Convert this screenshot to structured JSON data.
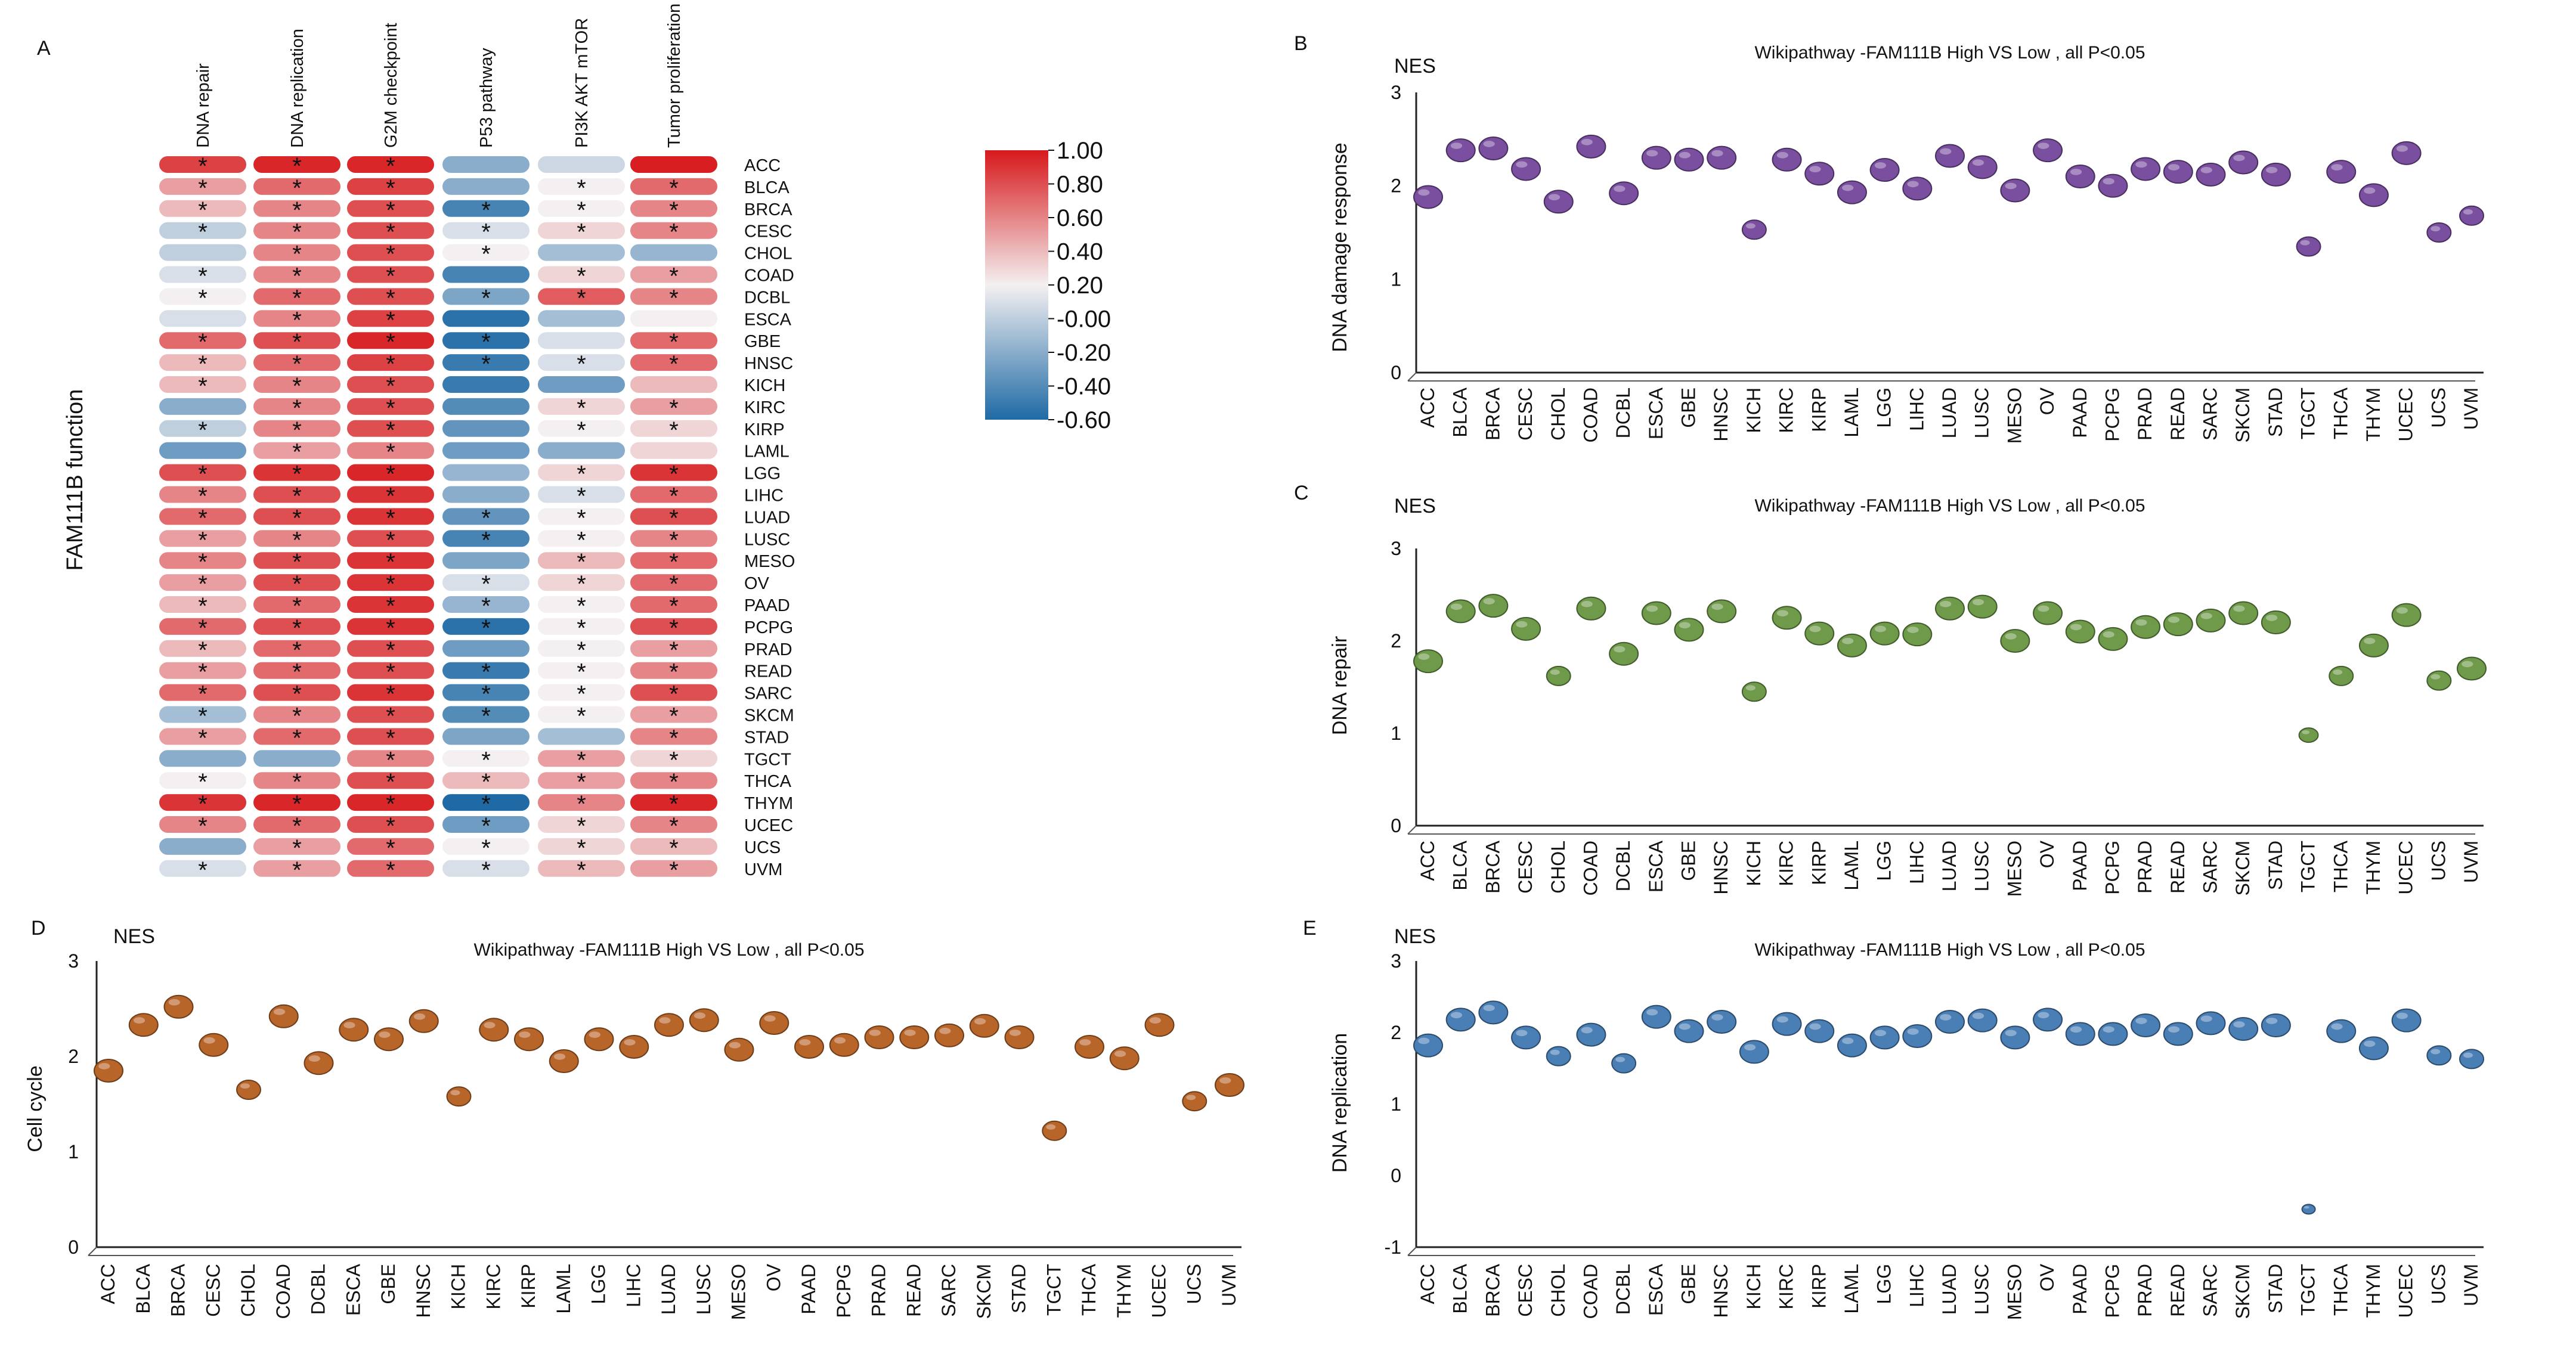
{
  "chart_data": [
    {
      "panel": "A",
      "type": "heatmap",
      "ylabel": "FAM111B function",
      "columns": [
        "DNA repair",
        "DNA replication",
        "G2M checkpoint",
        "P53 pathway",
        "PI3K AKT mTOR",
        "Tumor proliferation"
      ],
      "rows": [
        "ACC",
        "BLCA",
        "BRCA",
        "CESC",
        "CHOL",
        "COAD",
        "DCBL",
        "ESCA",
        "GBE",
        "HNSC",
        "KICH",
        "KIRC",
        "KIRP",
        "LAML",
        "LGG",
        "LIHC",
        "LUAD",
        "LUSC",
        "MESO",
        "OV",
        "PAAD",
        "PCPG",
        "PRAD",
        "READ",
        "SARC",
        "SKCM",
        "STAD",
        "TGCT",
        "THCA",
        "THYM",
        "UCEC",
        "UCS",
        "UVM"
      ],
      "values": [
        [
          0.85,
          0.95,
          0.95,
          -0.2,
          0.05,
          0.98
        ],
        [
          0.5,
          0.7,
          0.85,
          -0.2,
          0.2,
          0.7
        ],
        [
          0.4,
          0.6,
          0.8,
          -0.45,
          0.2,
          0.6
        ],
        [
          0.0,
          0.6,
          0.8,
          0.1,
          0.3,
          0.6
        ],
        [
          0.0,
          0.6,
          0.8,
          0.2,
          -0.1,
          -0.15
        ],
        [
          0.1,
          0.6,
          0.8,
          -0.45,
          0.3,
          0.5
        ],
        [
          0.2,
          0.7,
          0.8,
          -0.25,
          0.75,
          0.6
        ],
        [
          0.1,
          0.6,
          0.85,
          -0.55,
          -0.1,
          0.2
        ],
        [
          0.7,
          0.8,
          0.95,
          -0.55,
          0.1,
          0.7
        ],
        [
          0.4,
          0.7,
          0.85,
          -0.5,
          0.1,
          0.7
        ],
        [
          0.4,
          0.6,
          0.8,
          -0.5,
          -0.3,
          0.4
        ],
        [
          -0.2,
          0.6,
          0.8,
          -0.4,
          0.3,
          0.5
        ],
        [
          0.0,
          0.6,
          0.8,
          -0.35,
          0.2,
          0.3
        ],
        [
          -0.3,
          0.5,
          0.6,
          -0.3,
          -0.2,
          0.3
        ],
        [
          0.8,
          0.9,
          0.95,
          -0.15,
          0.3,
          0.9
        ],
        [
          0.6,
          0.8,
          0.9,
          -0.2,
          0.1,
          0.7
        ],
        [
          0.7,
          0.8,
          0.9,
          -0.35,
          0.2,
          0.8
        ],
        [
          0.5,
          0.6,
          0.8,
          -0.45,
          0.2,
          0.6
        ],
        [
          0.6,
          0.8,
          0.9,
          -0.25,
          0.4,
          0.7
        ],
        [
          0.5,
          0.8,
          0.9,
          0.1,
          0.3,
          0.7
        ],
        [
          0.4,
          0.7,
          0.9,
          -0.15,
          0.2,
          0.7
        ],
        [
          0.7,
          0.8,
          0.9,
          -0.55,
          0.2,
          0.8
        ],
        [
          0.4,
          0.7,
          0.8,
          -0.3,
          0.2,
          0.5
        ],
        [
          0.5,
          0.7,
          0.8,
          -0.5,
          0.2,
          0.6
        ],
        [
          0.7,
          0.8,
          0.9,
          -0.45,
          0.2,
          0.8
        ],
        [
          -0.1,
          0.6,
          0.8,
          -0.4,
          0.2,
          0.5
        ],
        [
          0.5,
          0.7,
          0.8,
          -0.25,
          -0.1,
          0.6
        ],
        [
          -0.2,
          -0.2,
          0.6,
          0.2,
          0.5,
          0.3
        ],
        [
          0.2,
          0.6,
          0.8,
          0.4,
          0.5,
          0.6
        ],
        [
          0.9,
          0.95,
          0.95,
          -0.6,
          0.6,
          0.95
        ],
        [
          0.6,
          0.7,
          0.8,
          -0.3,
          0.3,
          0.6
        ],
        [
          -0.2,
          0.5,
          0.7,
          0.2,
          0.3,
          0.4
        ],
        [
          0.1,
          0.5,
          0.7,
          0.1,
          0.4,
          0.5
        ]
      ],
      "stars": [
        [
          1,
          1,
          1,
          0,
          0,
          0
        ],
        [
          1,
          1,
          1,
          0,
          1,
          1
        ],
        [
          1,
          1,
          1,
          1,
          1,
          1
        ],
        [
          1,
          1,
          1,
          1,
          1,
          1
        ],
        [
          0,
          1,
          1,
          1,
          0,
          0
        ],
        [
          1,
          1,
          1,
          0,
          1,
          1
        ],
        [
          1,
          1,
          1,
          1,
          1,
          1
        ],
        [
          0,
          1,
          1,
          0,
          0,
          0
        ],
        [
          1,
          1,
          1,
          1,
          0,
          1
        ],
        [
          1,
          1,
          1,
          1,
          1,
          1
        ],
        [
          1,
          1,
          1,
          0,
          0,
          0
        ],
        [
          0,
          1,
          1,
          0,
          1,
          1
        ],
        [
          1,
          1,
          1,
          0,
          1,
          1
        ],
        [
          0,
          1,
          1,
          0,
          0,
          0
        ],
        [
          1,
          1,
          1,
          0,
          1,
          1
        ],
        [
          1,
          1,
          1,
          0,
          1,
          1
        ],
        [
          1,
          1,
          1,
          1,
          1,
          1
        ],
        [
          1,
          1,
          1,
          1,
          1,
          1
        ],
        [
          1,
          1,
          1,
          0,
          1,
          1
        ],
        [
          1,
          1,
          1,
          1,
          1,
          1
        ],
        [
          1,
          1,
          1,
          1,
          1,
          1
        ],
        [
          1,
          1,
          1,
          1,
          1,
          1
        ],
        [
          1,
          1,
          1,
          0,
          1,
          1
        ],
        [
          1,
          1,
          1,
          1,
          1,
          1
        ],
        [
          1,
          1,
          1,
          1,
          1,
          1
        ],
        [
          1,
          1,
          1,
          1,
          1,
          1
        ],
        [
          1,
          1,
          1,
          0,
          0,
          1
        ],
        [
          0,
          0,
          1,
          1,
          1,
          1
        ],
        [
          1,
          1,
          1,
          1,
          1,
          1
        ],
        [
          1,
          1,
          1,
          1,
          1,
          1
        ],
        [
          1,
          1,
          1,
          1,
          1,
          1
        ],
        [
          0,
          1,
          1,
          1,
          1,
          1
        ],
        [
          1,
          1,
          1,
          1,
          1,
          1
        ]
      ],
      "star_symbol": "*",
      "colorbar": {
        "min": -0.6,
        "max": 1.0,
        "tick_values": [
          1.0,
          0.8,
          0.6,
          0.4,
          0.2,
          0.0,
          -0.2,
          -0.4,
          -0.6
        ],
        "tick_labels": [
          "1.00",
          "0.80",
          "0.60",
          "0.40",
          "0.20",
          "-0.00",
          "-0.20",
          "-0.40",
          "-0.60"
        ],
        "colors": {
          "high": "#d7191c",
          "mid": "#f4f0f1",
          "low": "#1f6aa5"
        }
      }
    },
    {
      "panel": "B",
      "type": "scatter",
      "title": "Wikipathway -FAM111B High VS Low , all P<0.05",
      "ylabel": "DNA damage response",
      "y_unit": "NES",
      "ylim": [
        0,
        3
      ],
      "yticks": [
        0,
        1,
        2,
        3
      ],
      "ytick_labels": [
        "0",
        "1",
        "2",
        "3"
      ],
      "color": "#7a4fa0",
      "categories": [
        "ACC",
        "BLCA",
        "BRCA",
        "CESC",
        "CHOL",
        "COAD",
        "DCBL",
        "ESCA",
        "GBE",
        "HNSC",
        "KICH",
        "KIRC",
        "KIRP",
        "LAML",
        "LGG",
        "LIHC",
        "LUAD",
        "LUSC",
        "MESO",
        "OV",
        "PAAD",
        "PCPG",
        "PRAD",
        "READ",
        "SARC",
        "SKCM",
        "STAD",
        "TGCT",
        "THCA",
        "THYM",
        "UCEC",
        "UCS",
        "UVM"
      ],
      "values": [
        1.88,
        2.38,
        2.4,
        2.18,
        1.83,
        2.42,
        1.92,
        2.3,
        2.28,
        2.3,
        1.53,
        2.28,
        2.13,
        1.93,
        2.17,
        1.97,
        2.32,
        2.2,
        1.95,
        2.38,
        2.1,
        2.0,
        2.18,
        2.15,
        2.12,
        2.25,
        2.12,
        1.35,
        2.15,
        1.9,
        2.35,
        1.5,
        1.68
      ]
    },
    {
      "panel": "C",
      "type": "scatter",
      "title": "Wikipathway -FAM111B High VS Low , all P<0.05",
      "ylabel": "DNA  repair",
      "y_unit": "NES",
      "ylim": [
        0,
        3
      ],
      "yticks": [
        0,
        1,
        2,
        3
      ],
      "ytick_labels": [
        "0",
        "1",
        "2",
        "3"
      ],
      "color": "#6e9a4a",
      "categories": [
        "ACC",
        "BLCA",
        "BRCA",
        "CESC",
        "CHOL",
        "COAD",
        "DCBL",
        "ESCA",
        "GBE",
        "HNSC",
        "KICH",
        "KIRC",
        "KIRP",
        "LAML",
        "LGG",
        "LIHC",
        "LUAD",
        "LUSC",
        "MESO",
        "OV",
        "PAAD",
        "PCPG",
        "PRAD",
        "READ",
        "SARC",
        "SKCM",
        "STAD",
        "TGCT",
        "THCA",
        "THYM",
        "UCEC",
        "UCS",
        "UVM"
      ],
      "values": [
        1.78,
        2.32,
        2.38,
        2.13,
        1.62,
        2.35,
        1.86,
        2.3,
        2.12,
        2.32,
        1.45,
        2.25,
        2.08,
        1.95,
        2.08,
        2.07,
        2.35,
        2.37,
        2.0,
        2.3,
        2.1,
        2.02,
        2.15,
        2.18,
        2.22,
        2.3,
        2.2,
        0.98,
        1.62,
        1.95,
        2.28,
        1.57,
        1.7
      ]
    },
    {
      "panel": "D",
      "type": "scatter",
      "title": "Wikipathway -FAM111B High VS Low , all P<0.05",
      "ylabel": "Cell cycle",
      "y_unit": "NES",
      "ylim": [
        0,
        3
      ],
      "yticks": [
        0,
        1,
        2,
        3
      ],
      "ytick_labels": [
        "0",
        "1",
        "2",
        "3"
      ],
      "color": "#b8652a",
      "categories": [
        "ACC",
        "BLCA",
        "BRCA",
        "CESC",
        "CHOL",
        "COAD",
        "DCBL",
        "ESCA",
        "GBE",
        "HNSC",
        "KICH",
        "KIRC",
        "KIRP",
        "LAML",
        "LGG",
        "LIHC",
        "LUAD",
        "LUSC",
        "MESO",
        "OV",
        "PAAD",
        "PCPG",
        "PRAD",
        "READ",
        "SARC",
        "SKCM",
        "STAD",
        "TGCT",
        "THCA",
        "THYM",
        "UCEC",
        "UCS",
        "UVM"
      ],
      "values": [
        1.85,
        2.33,
        2.52,
        2.12,
        1.65,
        2.42,
        1.93,
        2.28,
        2.18,
        2.37,
        1.58,
        2.28,
        2.18,
        1.95,
        2.18,
        2.1,
        2.33,
        2.38,
        2.07,
        2.35,
        2.1,
        2.12,
        2.2,
        2.2,
        2.22,
        2.32,
        2.2,
        1.22,
        2.1,
        1.98,
        2.33,
        1.53,
        1.7
      ]
    },
    {
      "panel": "E",
      "type": "scatter",
      "title": "Wikipathway -FAM111B High VS Low , all P<0.05",
      "ylabel": "DNA replication",
      "y_unit": "NES",
      "ylim": [
        -1,
        3
      ],
      "yticks": [
        -1,
        0,
        1,
        2,
        3
      ],
      "ytick_labels": [
        "-1",
        "0",
        "1",
        "2",
        "3"
      ],
      "color": "#4a7fb5",
      "categories": [
        "ACC",
        "BLCA",
        "BRCA",
        "CESC",
        "CHOL",
        "COAD",
        "DCBL",
        "ESCA",
        "GBE",
        "HNSC",
        "KICH",
        "KIRC",
        "KIRP",
        "LAML",
        "LGG",
        "LIHC",
        "LUAD",
        "LUSC",
        "MESO",
        "OV",
        "PAAD",
        "PCPG",
        "PRAD",
        "READ",
        "SARC",
        "SKCM",
        "STAD",
        "TGCT",
        "THCA",
        "THYM",
        "UCEC",
        "UCS",
        "UVM"
      ],
      "values": [
        1.82,
        2.18,
        2.28,
        1.93,
        1.67,
        1.97,
        1.57,
        2.22,
        2.02,
        2.15,
        1.73,
        2.12,
        2.02,
        1.82,
        1.93,
        1.95,
        2.15,
        2.17,
        1.93,
        2.18,
        1.98,
        1.98,
        2.1,
        1.98,
        2.13,
        2.05,
        2.1,
        -0.47,
        2.02,
        1.78,
        2.17,
        1.68,
        1.63
      ]
    }
  ]
}
